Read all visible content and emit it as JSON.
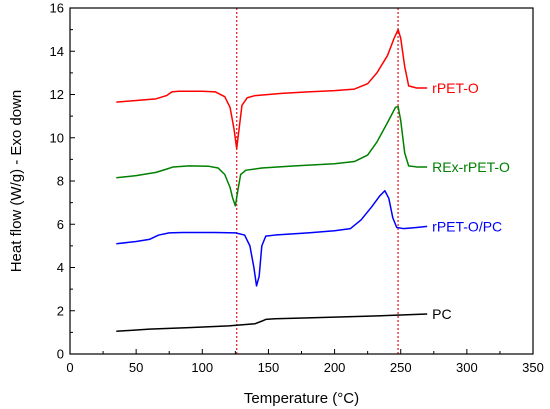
{
  "chart_data": {
    "type": "line",
    "xlabel": "Temperature (°C)",
    "ylabel": "Heat flow (W/g) - Exo down",
    "xlim": [
      0,
      350
    ],
    "ylim": [
      0,
      16
    ],
    "xticks": [
      0,
      50,
      100,
      150,
      200,
      250,
      300,
      350
    ],
    "yticks": [
      0,
      2,
      4,
      6,
      8,
      10,
      12,
      14,
      16
    ],
    "grid": false,
    "reference_lines": [
      {
        "x": 126,
        "color": "#e8323a",
        "style": "dotted"
      },
      {
        "x": 248,
        "color": "#e8323a",
        "style": "dotted"
      }
    ],
    "series": [
      {
        "name": "rPET-O",
        "color": "#ff0000",
        "points": [
          [
            35,
            11.65
          ],
          [
            50,
            11.72
          ],
          [
            65,
            11.8
          ],
          [
            73,
            11.95
          ],
          [
            77,
            12.12
          ],
          [
            82,
            12.15
          ],
          [
            100,
            12.15
          ],
          [
            110,
            12.12
          ],
          [
            117,
            11.9
          ],
          [
            121,
            11.4
          ],
          [
            124,
            10.4
          ],
          [
            126,
            9.5
          ],
          [
            128,
            10.5
          ],
          [
            130,
            11.5
          ],
          [
            134,
            11.85
          ],
          [
            140,
            11.95
          ],
          [
            160,
            12.05
          ],
          [
            180,
            12.12
          ],
          [
            200,
            12.18
          ],
          [
            215,
            12.25
          ],
          [
            225,
            12.5
          ],
          [
            232,
            13.0
          ],
          [
            240,
            13.8
          ],
          [
            245,
            14.6
          ],
          [
            248,
            15.0
          ],
          [
            250,
            14.6
          ],
          [
            253,
            13.3
          ],
          [
            256,
            12.4
          ],
          [
            262,
            12.3
          ],
          [
            270,
            12.3
          ]
        ]
      },
      {
        "name": "REx-rPET-O",
        "color": "#008000",
        "points": [
          [
            35,
            8.15
          ],
          [
            50,
            8.25
          ],
          [
            65,
            8.4
          ],
          [
            73,
            8.55
          ],
          [
            78,
            8.65
          ],
          [
            90,
            8.7
          ],
          [
            105,
            8.68
          ],
          [
            112,
            8.6
          ],
          [
            117,
            8.3
          ],
          [
            121,
            7.7
          ],
          [
            123,
            7.2
          ],
          [
            125,
            6.85
          ],
          [
            127,
            7.6
          ],
          [
            129,
            8.3
          ],
          [
            133,
            8.5
          ],
          [
            145,
            8.6
          ],
          [
            170,
            8.7
          ],
          [
            200,
            8.8
          ],
          [
            215,
            8.9
          ],
          [
            225,
            9.2
          ],
          [
            232,
            9.8
          ],
          [
            240,
            10.7
          ],
          [
            246,
            11.4
          ],
          [
            248,
            11.45
          ],
          [
            250,
            10.8
          ],
          [
            253,
            9.3
          ],
          [
            256,
            8.7
          ],
          [
            262,
            8.65
          ],
          [
            270,
            8.65
          ]
        ]
      },
      {
        "name": "rPET-O/PC",
        "color": "#0000ff",
        "points": [
          [
            35,
            5.1
          ],
          [
            50,
            5.2
          ],
          [
            60,
            5.3
          ],
          [
            67,
            5.5
          ],
          [
            75,
            5.6
          ],
          [
            85,
            5.62
          ],
          [
            110,
            5.62
          ],
          [
            125,
            5.6
          ],
          [
            132,
            5.5
          ],
          [
            136,
            5.0
          ],
          [
            139,
            4.0
          ],
          [
            141,
            3.15
          ],
          [
            143,
            3.6
          ],
          [
            145,
            5.0
          ],
          [
            148,
            5.45
          ],
          [
            155,
            5.5
          ],
          [
            180,
            5.6
          ],
          [
            200,
            5.7
          ],
          [
            212,
            5.8
          ],
          [
            220,
            6.2
          ],
          [
            228,
            6.8
          ],
          [
            234,
            7.3
          ],
          [
            238,
            7.55
          ],
          [
            241,
            7.2
          ],
          [
            244,
            6.3
          ],
          [
            247,
            5.85
          ],
          [
            252,
            5.8
          ],
          [
            262,
            5.85
          ],
          [
            270,
            5.9
          ]
        ]
      },
      {
        "name": "PC",
        "color": "#000000",
        "points": [
          [
            35,
            1.05
          ],
          [
            60,
            1.15
          ],
          [
            90,
            1.22
          ],
          [
            120,
            1.3
          ],
          [
            140,
            1.4
          ],
          [
            145,
            1.52
          ],
          [
            148,
            1.6
          ],
          [
            155,
            1.63
          ],
          [
            180,
            1.67
          ],
          [
            210,
            1.72
          ],
          [
            240,
            1.78
          ],
          [
            270,
            1.85
          ]
        ]
      }
    ]
  }
}
